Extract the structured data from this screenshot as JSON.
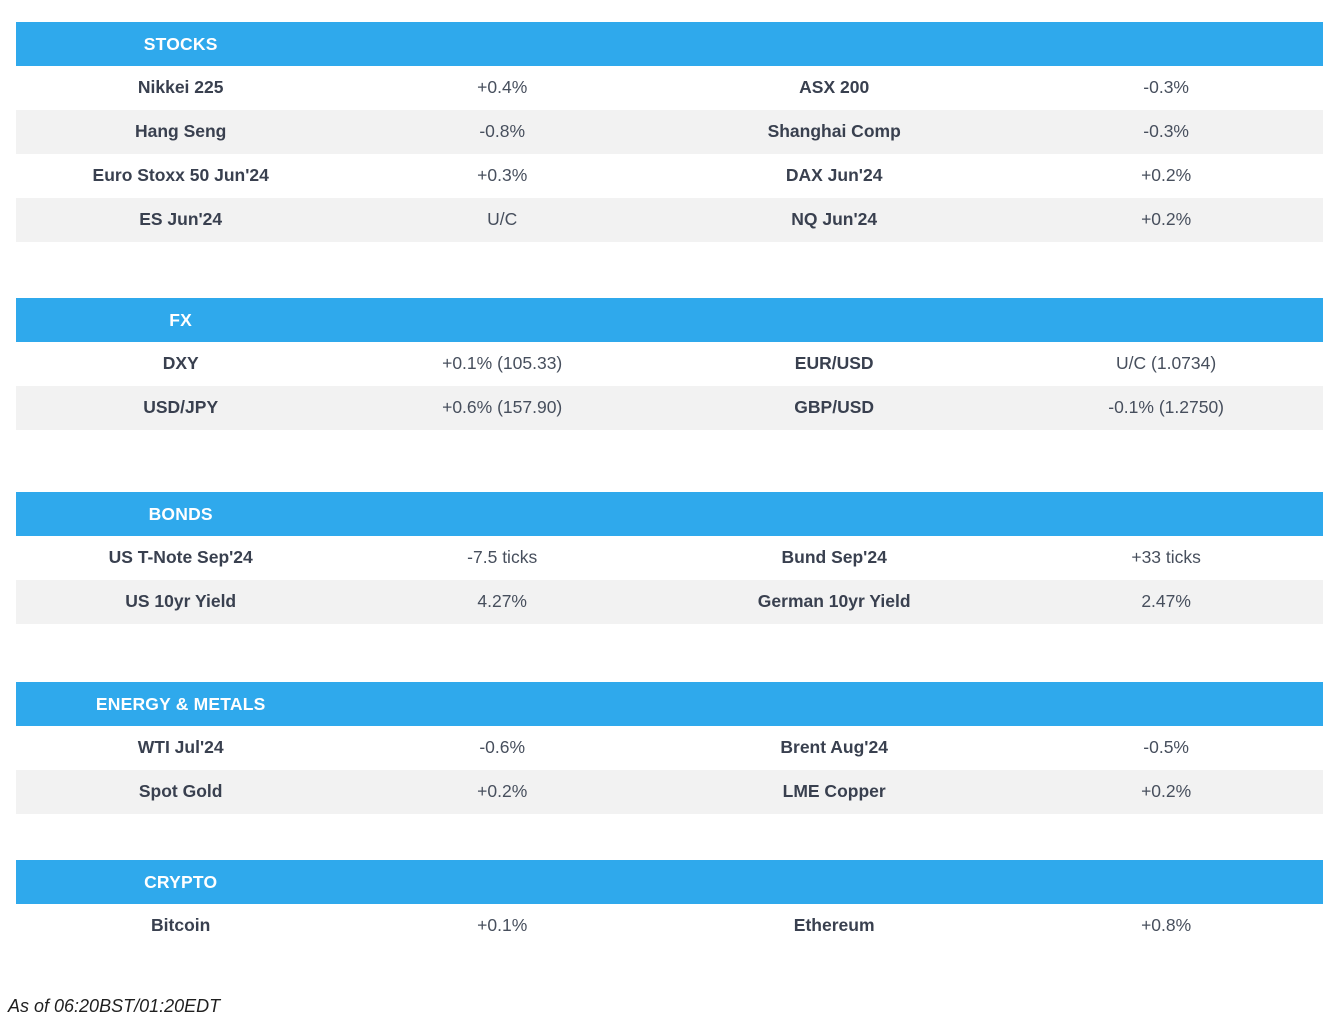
{
  "colors": {
    "header_background": "#2FA9EC",
    "header_text": "#FFFFFF",
    "row_alt_background": "#F2F2F2",
    "instrument_name_text": "#39404F",
    "instrument_value_text": "#474F5D",
    "footer_text": "#1F1F1F"
  },
  "sections": [
    {
      "title": "STOCKS",
      "rows": [
        {
          "left_name": "Nikkei 225",
          "left_value": "+0.4%",
          "right_name": "ASX 200",
          "right_value": "-0.3%"
        },
        {
          "left_name": "Hang Seng",
          "left_value": "-0.8%",
          "right_name": "Shanghai Comp",
          "right_value": "-0.3%"
        },
        {
          "left_name": "Euro Stoxx 50 Jun'24",
          "left_value": "+0.3%",
          "right_name": "DAX Jun'24",
          "right_value": "+0.2%"
        },
        {
          "left_name": "ES Jun'24",
          "left_value": "U/C",
          "right_name": "NQ Jun'24",
          "right_value": "+0.2%"
        }
      ]
    },
    {
      "title": "FX",
      "rows": [
        {
          "left_name": "DXY",
          "left_value": "+0.1% (105.33)",
          "right_name": "EUR/USD",
          "right_value": "U/C (1.0734)"
        },
        {
          "left_name": "USD/JPY",
          "left_value": "+0.6% (157.90)",
          "right_name": "GBP/USD",
          "right_value": "-0.1% (1.2750)"
        }
      ]
    },
    {
      "title": "BONDS",
      "rows": [
        {
          "left_name": "US T-Note Sep'24",
          "left_value": "-7.5 ticks",
          "right_name": "Bund Sep'24",
          "right_value": "+33 ticks"
        },
        {
          "left_name": "US 10yr Yield",
          "left_value": "4.27%",
          "right_name": "German 10yr Yield",
          "right_value": "2.47%"
        }
      ]
    },
    {
      "title": "ENERGY & METALS",
      "rows": [
        {
          "left_name": "WTI Jul'24",
          "left_value": "-0.6%",
          "right_name": "Brent Aug'24",
          "right_value": "-0.5%"
        },
        {
          "left_name": "Spot Gold",
          "left_value": "+0.2%",
          "right_name": "LME Copper",
          "right_value": "+0.2%"
        }
      ]
    },
    {
      "title": "CRYPTO",
      "rows": [
        {
          "left_name": "Bitcoin",
          "left_value": "+0.1%",
          "right_name": "Ethereum",
          "right_value": "+0.8%"
        }
      ]
    }
  ],
  "footer": {
    "as_of": "As of 06:20BST/01:20EDT"
  }
}
